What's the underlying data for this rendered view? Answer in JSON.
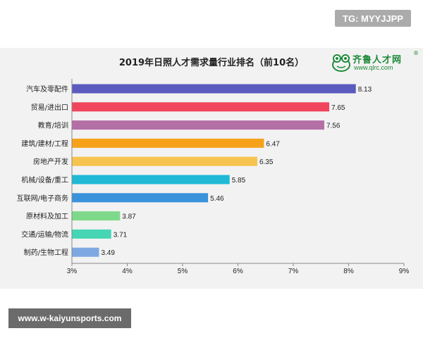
{
  "watermark_tag": "TG: MYYJJPP",
  "footer_url": "www.w-kaiyunsports.com",
  "logo": {
    "name": "齐鲁人才网",
    "url": "www.qlrc.com",
    "reg": "®",
    "color": "#1e8a3a"
  },
  "chart_data": {
    "type": "bar",
    "orientation": "horizontal",
    "title": "2019年日照人才需求量行业排名（前10名）",
    "xlabel": "",
    "ylabel": "",
    "xlim": [
      3,
      9
    ],
    "x_ticks": [
      "3%",
      "4%",
      "5%",
      "6%",
      "7%",
      "8%",
      "9%"
    ],
    "grid": false,
    "categories": [
      "汽车及零配件",
      "贸易/进出口",
      "教育/培训",
      "建筑/建材/工程",
      "房地产开发",
      "机械/设备/重工",
      "互联网/电子商务",
      "原材料及加工",
      "交通/运输/物流",
      "制药/生物工程"
    ],
    "values": [
      8.13,
      7.65,
      7.56,
      6.47,
      6.35,
      5.85,
      5.46,
      3.87,
      3.71,
      3.49
    ],
    "value_labels": [
      "8.13",
      "7.65",
      "7.56",
      "6.47",
      "6.35",
      "5.85",
      "5.46",
      "3.87",
      "3.71",
      "3.49"
    ],
    "colors": [
      "#5b5bbf",
      "#f0455d",
      "#b46fa6",
      "#f5a21a",
      "#f6c44e",
      "#1fb9d6",
      "#3a92da",
      "#7fd98a",
      "#46d6b6",
      "#7ea8e2"
    ]
  }
}
